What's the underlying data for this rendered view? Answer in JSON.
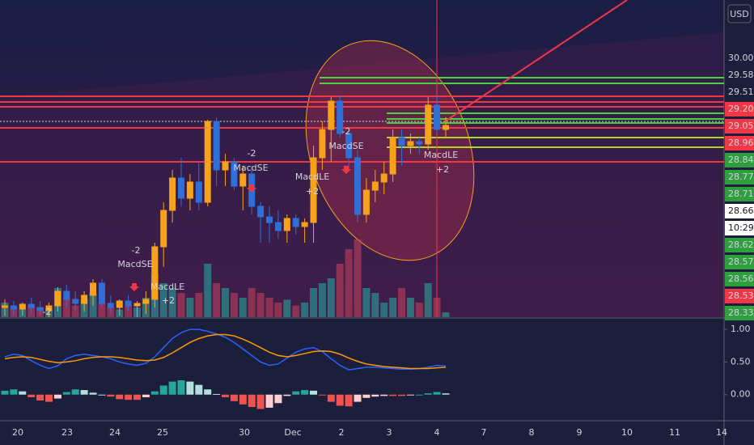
{
  "currency": "USD",
  "x_labels": [
    "20",
    "23",
    "24",
    "25",
    "30",
    "Dec",
    "2",
    "3",
    "4",
    "7",
    "8",
    "9",
    "10",
    "11",
    "14"
  ],
  "chart_data": [
    {
      "type": "candlestick",
      "ylim": [
        23.6,
        31.44
      ],
      "up_color": "#f7a21b",
      "down_color": "#2f6fd6",
      "candles": [
        [
          23.84,
          24.04,
          23.64,
          23.88
        ],
        [
          23.88,
          24.0,
          23.64,
          23.8
        ],
        [
          23.8,
          23.96,
          23.64,
          23.92
        ],
        [
          23.92,
          24.08,
          23.68,
          23.84
        ],
        [
          23.84,
          24.0,
          23.64,
          23.76
        ],
        [
          23.76,
          23.96,
          23.6,
          23.88
        ],
        [
          23.88,
          24.34,
          23.74,
          24.24
        ],
        [
          24.24,
          24.4,
          23.84,
          24.04
        ],
        [
          24.04,
          24.24,
          23.74,
          23.94
        ],
        [
          23.94,
          24.24,
          23.74,
          24.14
        ],
        [
          24.14,
          24.54,
          23.88,
          24.44
        ],
        [
          24.44,
          24.54,
          23.84,
          23.94
        ],
        [
          23.94,
          24.14,
          23.68,
          23.84
        ],
        [
          23.84,
          24.04,
          23.64,
          24.0
        ],
        [
          24.0,
          24.14,
          23.74,
          23.88
        ],
        [
          23.88,
          24.0,
          23.6,
          23.94
        ],
        [
          23.94,
          24.24,
          23.68,
          24.04
        ],
        [
          24.04,
          25.44,
          23.84,
          25.34
        ],
        [
          25.34,
          26.44,
          24.84,
          26.24
        ],
        [
          26.24,
          27.24,
          25.94,
          27.04
        ],
        [
          27.04,
          27.54,
          26.34,
          26.54
        ],
        [
          26.54,
          27.14,
          26.24,
          26.94
        ],
        [
          26.94,
          27.44,
          26.24,
          26.44
        ],
        [
          26.44,
          28.48,
          26.34,
          28.44
        ],
        [
          28.44,
          28.54,
          26.84,
          27.24
        ],
        [
          27.24,
          27.64,
          26.84,
          27.44
        ],
        [
          27.44,
          27.54,
          26.74,
          26.84
        ],
        [
          26.84,
          27.34,
          26.24,
          27.14
        ],
        [
          27.14,
          27.34,
          26.14,
          26.34
        ],
        [
          26.34,
          26.44,
          25.44,
          26.08
        ],
        [
          26.08,
          26.34,
          25.44,
          25.94
        ],
        [
          25.94,
          26.24,
          25.54,
          25.74
        ],
        [
          25.74,
          26.14,
          25.44,
          26.04
        ],
        [
          26.04,
          26.14,
          25.64,
          25.84
        ],
        [
          25.84,
          26.04,
          25.44,
          25.94
        ],
        [
          25.94,
          27.84,
          25.44,
          27.54
        ],
        [
          27.54,
          28.44,
          27.24,
          28.24
        ],
        [
          28.24,
          29.04,
          27.44,
          28.94
        ],
        [
          28.94,
          29.08,
          28.04,
          28.14
        ],
        [
          28.14,
          28.24,
          27.24,
          27.54
        ],
        [
          27.54,
          27.74,
          25.94,
          26.14
        ],
        [
          26.14,
          27.04,
          25.94,
          26.74
        ],
        [
          26.74,
          27.24,
          26.44,
          26.94
        ],
        [
          26.94,
          27.44,
          26.64,
          27.14
        ],
        [
          27.14,
          28.24,
          26.94,
          28.04
        ],
        [
          28.04,
          28.24,
          27.34,
          27.84
        ],
        [
          27.84,
          28.14,
          27.64,
          27.94
        ],
        [
          27.94,
          28.04,
          27.64,
          27.88
        ],
        [
          27.88,
          29.04,
          27.74,
          28.84
        ],
        [
          28.84,
          29.08,
          28.14,
          28.24
        ],
        [
          28.24,
          28.54,
          28.04,
          28.34
        ]
      ],
      "volume": {
        "ylim": [
          0,
          100
        ],
        "up_color": "#26a69a",
        "down_color": "#c2405a",
        "values": [
          15,
          10,
          8,
          12,
          10,
          8,
          30,
          20,
          12,
          18,
          25,
          15,
          10,
          8,
          12,
          10,
          20,
          45,
          35,
          30,
          25,
          20,
          25,
          55,
          35,
          30,
          25,
          20,
          30,
          25,
          20,
          15,
          18,
          12,
          15,
          30,
          35,
          40,
          55,
          70,
          80,
          30,
          25,
          15,
          20,
          30,
          20,
          15,
          35,
          20,
          5
        ]
      },
      "price_labels": [
        {
          "label": "30.00",
          "bg": "#1b1f3b"
        },
        {
          "label": "29.58",
          "bg": "#1b1f3b"
        },
        {
          "label": "29.51",
          "bg": "#1b1f3b"
        },
        {
          "label": "29.20",
          "bg": "#f23645"
        },
        {
          "label": "29.05",
          "bg": "#f23645"
        },
        {
          "label": "28.96",
          "bg": "#f23645"
        },
        {
          "label": "28.84",
          "bg": "#2e9e3e"
        },
        {
          "label": "28.77",
          "bg": "#2e9e3e"
        },
        {
          "label": "28.71",
          "bg": "#2e9e3e"
        },
        {
          "label": "28.66",
          "bg": "#ffffff"
        },
        {
          "label": "10:29",
          "bg": "#ffffff"
        },
        {
          "label": "28.62",
          "bg": "#2e9e3e"
        },
        {
          "label": "28.57",
          "bg": "#2e9e3e"
        },
        {
          "label": "28.56",
          "bg": "#2e9e3e"
        },
        {
          "label": "28.53",
          "bg": "#f23645"
        },
        {
          "label": "28.33",
          "bg": "#2e9e3e"
        }
      ],
      "annotations": [
        "-2",
        "MacdSE",
        "MacdLE",
        "+2",
        "-2",
        "-2",
        "MacdSE",
        "MacdLE",
        "+2",
        "-2",
        "MacdSE",
        "MacdLE",
        "+2"
      ]
    },
    {
      "type": "macd",
      "ylim": [
        -0.4,
        1.15
      ],
      "yticks": [
        {
          "value": 1,
          "label": "1.00"
        },
        {
          "value": 0.5,
          "label": "0.50"
        },
        {
          "value": 0,
          "label": "0.00"
        }
      ],
      "series": [
        {
          "color": "#2962ff",
          "values": [
            0.58,
            0.62,
            0.6,
            0.52,
            0.45,
            0.4,
            0.44,
            0.55,
            0.6,
            0.62,
            0.6,
            0.58,
            0.55,
            0.5,
            0.47,
            0.45,
            0.48,
            0.58,
            0.72,
            0.86,
            0.95,
            1.0,
            1.0,
            0.97,
            0.93,
            0.88,
            0.8,
            0.7,
            0.6,
            0.5,
            0.45,
            0.47,
            0.56,
            0.65,
            0.7,
            0.72,
            0.66,
            0.55,
            0.45,
            0.38,
            0.4,
            0.42,
            0.42,
            0.41,
            0.4,
            0.39,
            0.39,
            0.4,
            0.42,
            0.45,
            0.44
          ]
        },
        {
          "color": "#ff9800",
          "values": [
            0.55,
            0.57,
            0.58,
            0.57,
            0.54,
            0.51,
            0.49,
            0.5,
            0.52,
            0.55,
            0.57,
            0.58,
            0.58,
            0.57,
            0.55,
            0.53,
            0.52,
            0.53,
            0.57,
            0.64,
            0.72,
            0.8,
            0.86,
            0.9,
            0.92,
            0.92,
            0.9,
            0.85,
            0.79,
            0.72,
            0.65,
            0.6,
            0.58,
            0.6,
            0.63,
            0.66,
            0.67,
            0.66,
            0.62,
            0.56,
            0.51,
            0.47,
            0.45,
            0.43,
            0.42,
            0.41,
            0.4,
            0.4,
            0.4,
            0.41,
            0.42
          ]
        }
      ],
      "histogram": {
        "colors": [
          "#26a69a",
          "#b2dfdb",
          "#ef5350",
          "#ffcdd2"
        ],
        "values": [
          0.06,
          0.08,
          0.05,
          -0.04,
          -0.09,
          -0.11,
          -0.06,
          0.04,
          0.08,
          0.07,
          0.03,
          0.0,
          -0.03,
          -0.07,
          -0.08,
          -0.08,
          -0.04,
          0.05,
          0.14,
          0.2,
          0.22,
          0.2,
          0.15,
          0.08,
          0.01,
          -0.04,
          -0.1,
          -0.15,
          -0.19,
          -0.22,
          -0.2,
          -0.13,
          -0.02,
          0.05,
          0.07,
          0.06,
          -0.01,
          -0.11,
          -0.17,
          -0.18,
          -0.11,
          -0.05,
          -0.03,
          -0.02,
          -0.02,
          -0.02,
          -0.01,
          0.0,
          0.02,
          0.04,
          0.02
        ]
      }
    }
  ]
}
